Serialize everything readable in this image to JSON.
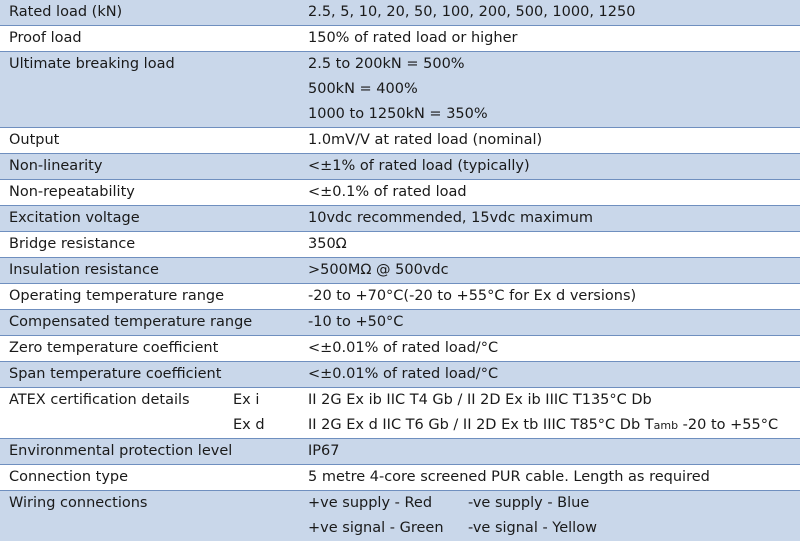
{
  "specs": [
    {
      "label": "Rated load (kN)",
      "values": [
        "2.5, 5, 10, 20, 50, 100, 200, 500, 1000, 1250"
      ]
    },
    {
      "label": "Proof load",
      "values": [
        "150% of rated load or higher"
      ]
    },
    {
      "label": "Ultimate breaking load",
      "values": [
        "2.5 to 200kN = 500%",
        "500kN = 400%",
        "1000 to 1250kN = 350%"
      ]
    },
    {
      "label": "Output",
      "values": [
        "1.0mV/V at rated load (nominal)"
      ]
    },
    {
      "label": "Non-linearity",
      "values": [
        "<±1% of rated load (typically)"
      ]
    },
    {
      "label": "Non-repeatability",
      "values": [
        "<±0.1% of rated load"
      ]
    },
    {
      "label": "Excitation voltage",
      "values": [
        "10vdc recommended, 15vdc maximum"
      ]
    },
    {
      "label": "Bridge resistance",
      "values": [
        "350Ω"
      ]
    },
    {
      "label": "Insulation resistance",
      "values": [
        ">500MΩ @ 500vdc"
      ]
    },
    {
      "label": "Operating temperature range",
      "values": [
        "-20 to +70°C(-20 to +55°C for Ex d versions)"
      ]
    },
    {
      "label": "Compensated temperature range",
      "values": [
        "-10 to +50°C"
      ]
    },
    {
      "label": "Zero temperature coefficient",
      "values": [
        "<±0.01% of rated load/°C"
      ]
    },
    {
      "label": "Span temperature coefficient",
      "values": [
        "<±0.01% of rated load/°C"
      ]
    }
  ],
  "atex": {
    "label": "ATEX certification details",
    "ex_i_label": "Ex i",
    "ex_i_value": "II 2G Ex ib IIC T4 Gb  / II 2D Ex ib IIIC T135°C Db",
    "ex_d_label": "Ex d",
    "ex_d_value_pre": "II 2G Ex d IIC T6 Gb / II 2D Ex tb IIIC T85°C Db T",
    "ex_d_tamb_sub": "amb",
    "ex_d_value_post": " -20 to +55°C"
  },
  "environmental": {
    "label": "Environmental protection level",
    "value": "IP67"
  },
  "connection": {
    "label": "Connection type",
    "value": "5 metre 4-core screened PUR cable. Length as required"
  },
  "wiring": {
    "label": "Wiring connections",
    "rows": [
      {
        "left": "+ve supply - Red",
        "right": "-ve supply - Blue"
      },
      {
        "left": "+ve signal - Green",
        "right": "-ve signal - Yellow"
      }
    ]
  },
  "colors": {
    "shade": "#c9d7ea",
    "separator": "#6f8fbf"
  }
}
